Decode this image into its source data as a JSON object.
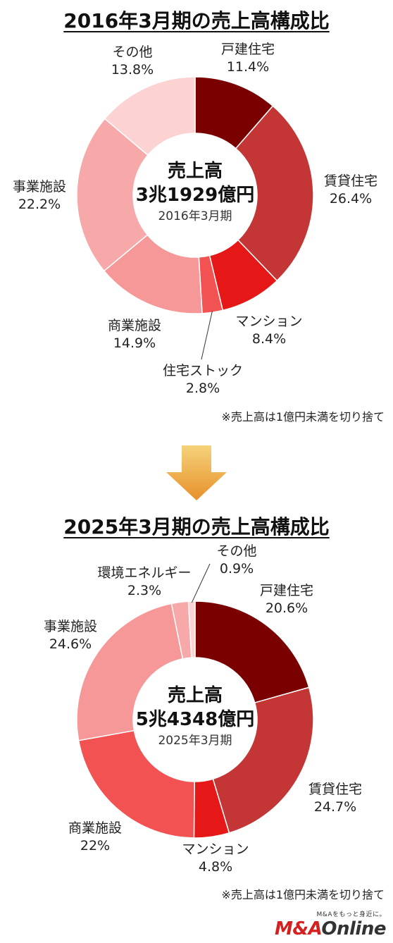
{
  "chart_data": [
    {
      "type": "pie",
      "title": "2016年3月期の売上高構成比",
      "center": {
        "line1": "売上高",
        "line2": "3兆1929億円",
        "line3": "2016年3月期"
      },
      "note": "※売上高は1億円未満を切り捨て",
      "slices": [
        {
          "name": "戸建住宅",
          "value": 11.4,
          "label": "11.4%",
          "color": "#7a0000"
        },
        {
          "name": "賃貸住宅",
          "value": 26.4,
          "label": "26.4%",
          "color": "#c43535"
        },
        {
          "name": "マンション",
          "value": 8.4,
          "label": "8.4%",
          "color": "#e51717"
        },
        {
          "name": "住宅ストック",
          "value": 2.8,
          "label": "2.8%",
          "color": "#f25252"
        },
        {
          "name": "商業施設",
          "value": 14.9,
          "label": "14.9%",
          "color": "#f79898"
        },
        {
          "name": "事業施設",
          "value": 22.2,
          "label": "22.2%",
          "color": "#f7a8a8"
        },
        {
          "name": "その他",
          "value": 13.8,
          "label": "13.8%",
          "color": "#fcd2d2"
        }
      ]
    },
    {
      "type": "pie",
      "title": "2025年3月期の売上高構成比",
      "center": {
        "line1": "売上高",
        "line2": "5兆4348億円",
        "line3": "2025年3月期"
      },
      "note": "※売上高は1億円未満を切り捨て",
      "slices": [
        {
          "name": "戸建住宅",
          "value": 20.6,
          "label": "20.6%",
          "color": "#7a0000"
        },
        {
          "name": "賃貸住宅",
          "value": 24.7,
          "label": "24.7%",
          "color": "#c43535"
        },
        {
          "name": "マンション",
          "value": 4.8,
          "label": "4.8%",
          "color": "#e51717"
        },
        {
          "name": "商業施設",
          "value": 22,
          "label": "22%",
          "color": "#f25252"
        },
        {
          "name": "事業施設",
          "value": 24.6,
          "label": "24.6%",
          "color": "#f79898"
        },
        {
          "name": "環境エネルギー",
          "value": 2.3,
          "label": "2.3%",
          "color": "#f7a8a8"
        },
        {
          "name": "その他",
          "value": 0.9,
          "label": "0.9%",
          "color": "#fcd2d2"
        }
      ]
    }
  ],
  "logo": {
    "tagline": "M&Aをもっと身近に。",
    "brand_main": "M&A",
    "brand_sub": "Online"
  },
  "arrow_colors": {
    "top": "#f5d27a",
    "bottom": "#e8912a"
  }
}
